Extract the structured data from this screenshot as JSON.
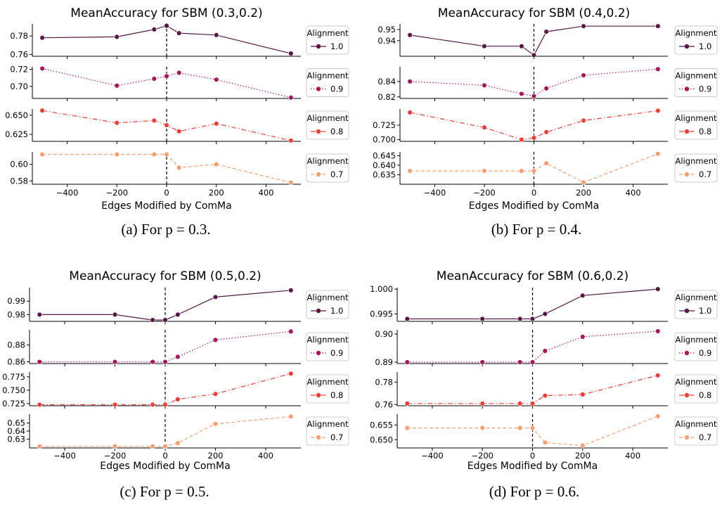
{
  "figure": {
    "captions": [
      "(a) For p = 0.3.",
      "(b) For p = 0.4.",
      "(c) For p = 0.5.",
      "(d) For p = 0.6."
    ]
  },
  "legend": {
    "title": "Alignment"
  },
  "colors": {
    "1.0": "#571845",
    "0.9": "#a3195b",
    "0.8": "#e8413c",
    "0.7": "#f4a073",
    "vline": "#000000"
  },
  "line_styles": {
    "1.0": "solid",
    "0.9": "dotted",
    "0.8": "dashdot",
    "0.7": "dashed"
  },
  "chart_data": [
    {
      "type": "line",
      "title": "MeanAccuracy for SBM (0.3,0.2)",
      "xlabel": "Edges Modified by ComMa",
      "x": [
        -500,
        -200,
        -50,
        0,
        50,
        200,
        500
      ],
      "xticks": [
        -400,
        -200,
        0,
        200,
        400
      ],
      "vline_x": 0,
      "caption": "(a) For p = 0.3.",
      "panels": [
        {
          "name": "1.0",
          "values": [
            0.778,
            0.779,
            0.787,
            0.791,
            0.783,
            0.781,
            0.761
          ],
          "ylim": [
            0.758,
            0.793
          ],
          "yticks": [
            "0.78",
            "0.76"
          ]
        },
        {
          "name": "0.9",
          "values": [
            0.721,
            0.701,
            0.709,
            0.712,
            0.716,
            0.708,
            0.687
          ],
          "ylim": [
            0.686,
            0.723
          ],
          "yticks": [
            "0.72",
            "0.70"
          ]
        },
        {
          "name": "0.8",
          "values": [
            0.656,
            0.64,
            0.643,
            0.637,
            0.629,
            0.639,
            0.617
          ],
          "ylim": [
            0.616,
            0.658
          ],
          "yticks": [
            "0.650",
            "0.625"
          ]
        },
        {
          "name": "0.7",
          "values": [
            0.612,
            0.612,
            0.612,
            0.612,
            0.596,
            0.6,
            0.578
          ],
          "ylim": [
            0.576,
            0.615
          ],
          "yticks": [
            "0.60",
            "0.58"
          ]
        }
      ]
    },
    {
      "type": "line",
      "title": "MeanAccuracy for SBM (0.4,0.2)",
      "xlabel": "Edges Modified by ComMa",
      "x": [
        -500,
        -200,
        -50,
        0,
        50,
        200,
        500
      ],
      "xticks": [
        -400,
        -200,
        0,
        200,
        400
      ],
      "vline_x": 0,
      "caption": "(b) For p = 0.4.",
      "panels": [
        {
          "name": "1.0",
          "values": [
            0.945,
            0.935,
            0.935,
            0.927,
            0.948,
            0.953,
            0.953
          ],
          "ylim": [
            0.926,
            0.955
          ],
          "yticks": [
            "0.95",
            "0.94"
          ]
        },
        {
          "name": "0.9",
          "values": [
            0.84,
            0.835,
            0.824,
            0.821,
            0.831,
            0.848,
            0.856
          ],
          "ylim": [
            0.818,
            0.859
          ],
          "yticks": [
            "0.84",
            "0.82"
          ]
        },
        {
          "name": "0.8",
          "values": [
            0.747,
            0.721,
            0.7,
            0.703,
            0.713,
            0.733,
            0.75
          ],
          "ylim": [
            0.697,
            0.753
          ],
          "yticks": [
            "0.725",
            "0.700"
          ]
        },
        {
          "name": "0.7",
          "values": [
            0.637,
            0.637,
            0.637,
            0.637,
            0.641,
            0.631,
            0.646
          ],
          "ylim": [
            0.63,
            0.647
          ],
          "yticks": [
            "0.645",
            "0.640",
            "0.635"
          ]
        }
      ]
    },
    {
      "type": "line",
      "title": "MeanAccuracy for SBM (0.5,0.2)",
      "xlabel": "Edges Modified by ComMa",
      "x": [
        -500,
        -200,
        -50,
        0,
        50,
        200,
        500
      ],
      "xticks": [
        -400,
        -200,
        0,
        200,
        400
      ],
      "vline_x": 0,
      "caption": "(c) For p = 0.5.",
      "panels": [
        {
          "name": "1.0",
          "values": [
            0.98,
            0.98,
            0.976,
            0.976,
            0.98,
            0.993,
            0.998
          ],
          "ylim": [
            0.975,
            1.0
          ],
          "yticks": [
            "0.99",
            "0.98"
          ]
        },
        {
          "name": "0.9",
          "values": [
            0.86,
            0.86,
            0.86,
            0.86,
            0.866,
            0.886,
            0.896
          ],
          "ylim": [
            0.858,
            0.898
          ],
          "yticks": [
            "0.88",
            "0.86"
          ]
        },
        {
          "name": "0.8",
          "values": [
            0.723,
            0.723,
            0.723,
            0.723,
            0.733,
            0.743,
            0.781
          ],
          "ylim": [
            0.721,
            0.784
          ],
          "yticks": [
            "0.775",
            "0.750",
            "0.725"
          ]
        },
        {
          "name": "0.7",
          "values": [
            0.621,
            0.621,
            0.621,
            0.621,
            0.625,
            0.649,
            0.658
          ],
          "ylim": [
            0.619,
            0.661
          ],
          "yticks": [
            "0.65",
            "0.64",
            "0.63"
          ]
        }
      ]
    },
    {
      "type": "line",
      "title": "MeanAccuracy for SBM (0.6,0.2)",
      "xlabel": "Edges Modified by ComMa",
      "x": [
        -500,
        -200,
        -50,
        0,
        50,
        200,
        500
      ],
      "xticks": [
        -400,
        -200,
        0,
        200,
        400
      ],
      "vline_x": 0,
      "caption": "(d) For p = 0.6.",
      "panels": [
        {
          "name": "1.0",
          "values": [
            0.994,
            0.994,
            0.994,
            0.994,
            0.995,
            0.9987,
            1.0
          ],
          "ylim": [
            0.9935,
            1.0003
          ],
          "yticks": [
            "1.000",
            "0.995"
          ]
        },
        {
          "name": "0.9",
          "values": [
            0.89,
            0.89,
            0.89,
            0.89,
            0.894,
            0.899,
            0.901
          ],
          "ylim": [
            0.8895,
            0.9015
          ],
          "yticks": [
            "0.90",
            "0.89"
          ]
        },
        {
          "name": "0.8",
          "values": [
            0.761,
            0.761,
            0.761,
            0.761,
            0.768,
            0.769,
            0.786
          ],
          "ylim": [
            0.759,
            0.789
          ],
          "yticks": [
            "0.78",
            "0.76"
          ]
        },
        {
          "name": "0.7",
          "values": [
            0.654,
            0.654,
            0.654,
            0.654,
            0.649,
            0.648,
            0.658
          ],
          "ylim": [
            0.6472,
            0.6587
          ],
          "yticks": [
            "0.655",
            "0.650"
          ]
        }
      ]
    }
  ]
}
